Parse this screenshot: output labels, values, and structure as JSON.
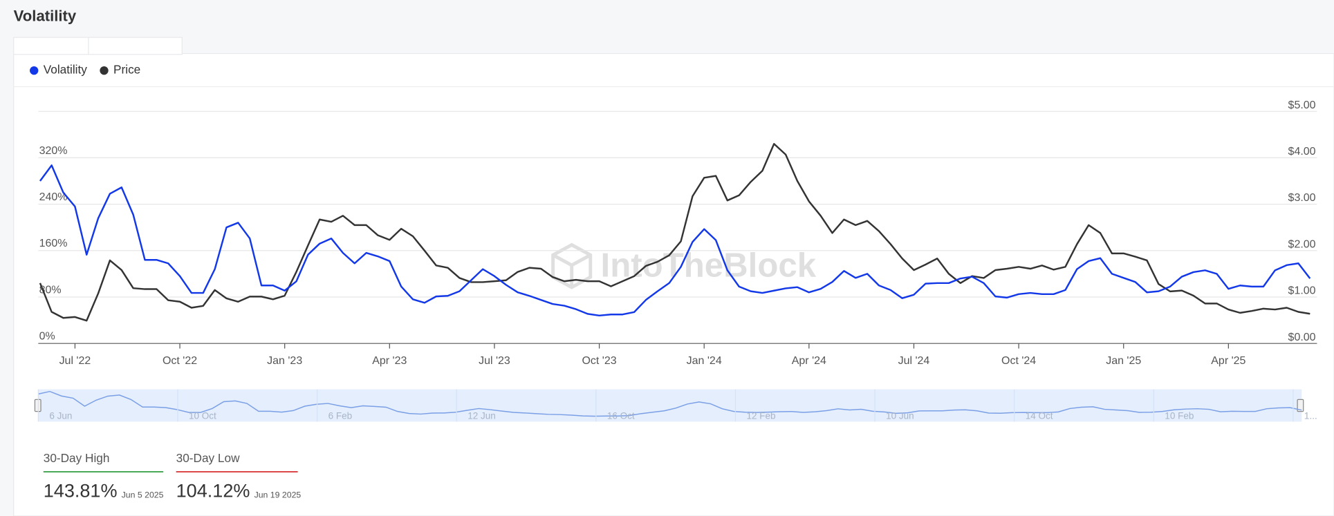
{
  "header": {
    "title": "Volatility"
  },
  "watermark": "IntoTheBlock",
  "chart_data": {
    "type": "line",
    "legend": "top-left",
    "grid": true,
    "categories": [
      null,
      null,
      null,
      "Jul '22",
      null,
      null,
      null,
      null,
      null,
      null,
      null,
      null,
      "Oct '22",
      null,
      null,
      null,
      null,
      null,
      null,
      null,
      null,
      "Jan '23",
      null,
      null,
      null,
      null,
      null,
      null,
      null,
      null,
      "Apr '23",
      null,
      null,
      null,
      null,
      null,
      null,
      null,
      null,
      "Jul '23",
      null,
      null,
      null,
      null,
      null,
      null,
      null,
      null,
      "Oct '23",
      null,
      null,
      null,
      null,
      null,
      null,
      null,
      null,
      "Jan '24",
      null,
      null,
      null,
      null,
      null,
      null,
      null,
      null,
      "Apr '24",
      null,
      null,
      null,
      null,
      null,
      null,
      null,
      null,
      "Jul '24",
      null,
      null,
      null,
      null,
      null,
      null,
      null,
      null,
      "Oct '24",
      null,
      null,
      null,
      null,
      null,
      null,
      null,
      null,
      "Jan '25",
      null,
      null,
      null,
      null,
      null,
      null,
      null,
      null,
      "Apr '25",
      null,
      null,
      null,
      null,
      null,
      null,
      null
    ],
    "series": [
      {
        "name": "Volatility",
        "color": "#1238e8",
        "axis": "y",
        "values": [
          280,
          307,
          260,
          236,
          153,
          216,
          258,
          269,
          222,
          144,
          144,
          138,
          116,
          87,
          87,
          128,
          200,
          208,
          181,
          100,
          100,
          91,
          107,
          153,
          172,
          181,
          156,
          138,
          156,
          150,
          142,
          98,
          76,
          70,
          81,
          82,
          90,
          109,
          128,
          116,
          101,
          88,
          82,
          75,
          68,
          65,
          59,
          51,
          48,
          50,
          50,
          54,
          75,
          90,
          104,
          132,
          175,
          197,
          178,
          126,
          98,
          90,
          87,
          91,
          95,
          97,
          88,
          94,
          106,
          125,
          113,
          120,
          100,
          92,
          78,
          84,
          103,
          104,
          104,
          112,
          115,
          104,
          81,
          79,
          85,
          87,
          85,
          85,
          92,
          128,
          142,
          147,
          120,
          113,
          106,
          88,
          90,
          98,
          115,
          123,
          126,
          120,
          94,
          100,
          98,
          98,
          126,
          135,
          138,
          112
        ]
      },
      {
        "name": "Price",
        "color": "#333333",
        "axis": "y2",
        "values": [
          1.3,
          0.68,
          0.55,
          0.57,
          0.49,
          1.08,
          1.79,
          1.58,
          1.19,
          1.17,
          1.17,
          0.93,
          0.9,
          0.77,
          0.81,
          1.15,
          0.97,
          0.9,
          1.01,
          1.01,
          0.95,
          1.03,
          1.54,
          2.11,
          2.67,
          2.62,
          2.75,
          2.55,
          2.55,
          2.33,
          2.23,
          2.47,
          2.31,
          2.0,
          1.68,
          1.63,
          1.41,
          1.32,
          1.32,
          1.34,
          1.36,
          1.54,
          1.63,
          1.61,
          1.43,
          1.34,
          1.37,
          1.34,
          1.34,
          1.23,
          1.34,
          1.45,
          1.67,
          1.76,
          1.9,
          2.2,
          3.17,
          3.57,
          3.61,
          3.08,
          3.19,
          3.48,
          3.72,
          4.3,
          4.07,
          3.5,
          3.06,
          2.75,
          2.38,
          2.67,
          2.55,
          2.64,
          2.42,
          2.14,
          1.83,
          1.58,
          1.7,
          1.83,
          1.5,
          1.3,
          1.45,
          1.41,
          1.58,
          1.61,
          1.65,
          1.61,
          1.68,
          1.59,
          1.65,
          2.14,
          2.55,
          2.38,
          1.94,
          1.94,
          1.87,
          1.79,
          1.28,
          1.12,
          1.14,
          1.03,
          0.86,
          0.86,
          0.73,
          0.66,
          0.7,
          0.75,
          0.73,
          0.77,
          0.68,
          0.64
        ]
      }
    ],
    "ylim": [
      0,
      400
    ],
    "yticks": [
      {
        "value": 0,
        "label": "0%"
      },
      {
        "value": 80,
        "label": "80%"
      },
      {
        "value": 160,
        "label": "160%"
      },
      {
        "value": 240,
        "label": "240%"
      },
      {
        "value": 320,
        "label": "320%"
      }
    ],
    "y2lim": [
      0,
      5
    ],
    "y2ticks": [
      {
        "value": 0,
        "label": "$0.00"
      },
      {
        "value": 1,
        "label": "$1.00"
      },
      {
        "value": 2,
        "label": "$2.00"
      },
      {
        "value": 3,
        "label": "$3.00"
      },
      {
        "value": 4,
        "label": "$4.00"
      },
      {
        "value": 5,
        "label": "$5.00"
      }
    ]
  },
  "navigator": {
    "labels": [
      "6 Jun",
      "10 Oct",
      "6 Feb",
      "12 Jun",
      "16 Oct",
      "12 Feb",
      "10 Jun",
      "14 Oct",
      "10 Feb",
      "1..."
    ]
  },
  "stats": [
    {
      "label": "30-Day High",
      "value": "143.81%",
      "date": "Jun 5 2025",
      "color": "#2e9e3e"
    },
    {
      "label": "30-Day Low",
      "value": "104.12%",
      "date": "Jun 19 2025",
      "color": "#d62b2b"
    }
  ]
}
